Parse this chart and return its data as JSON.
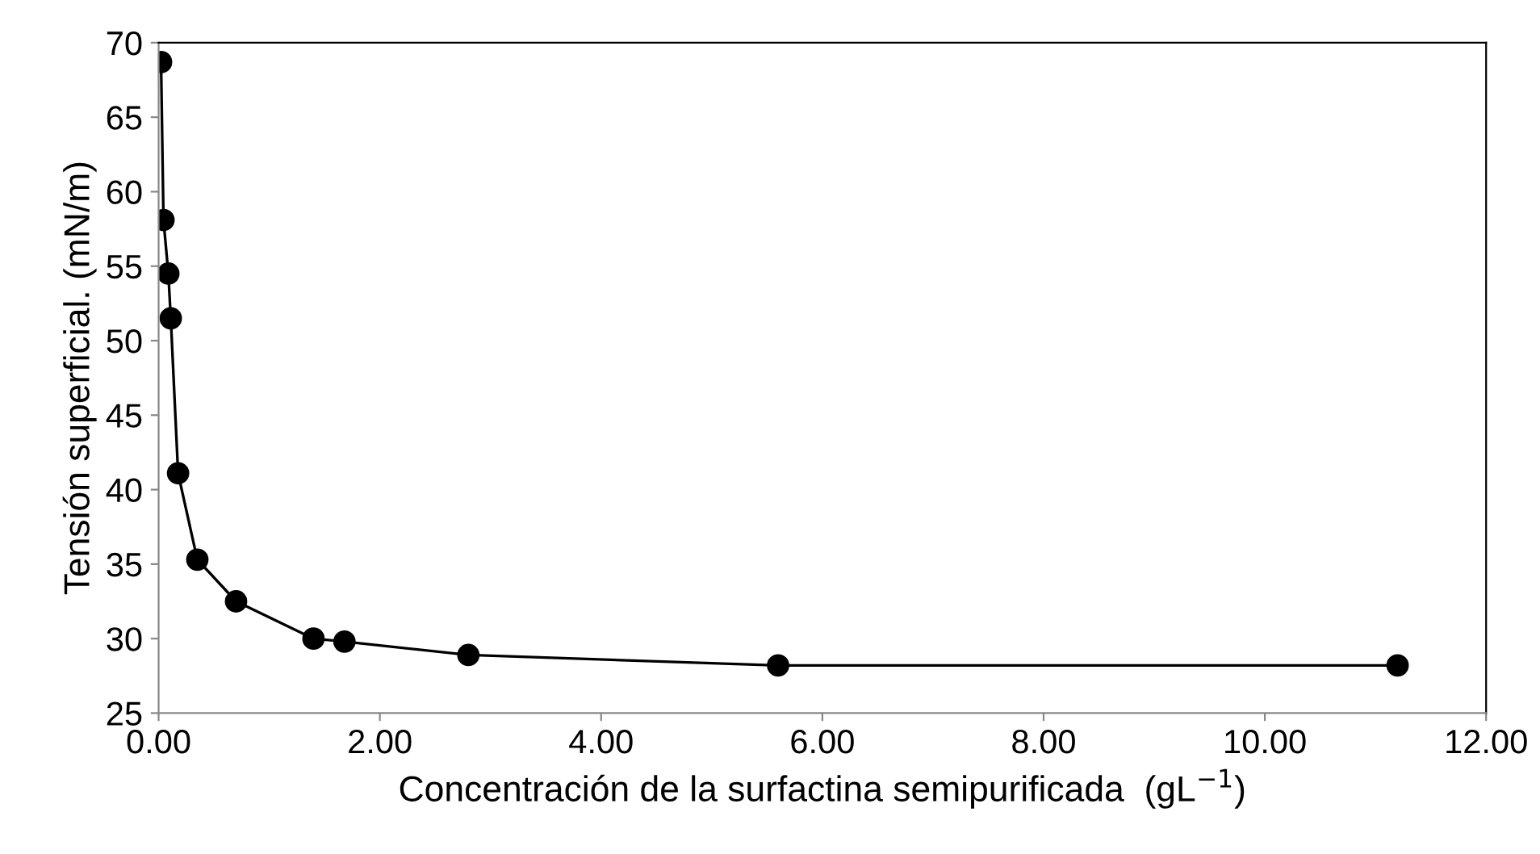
{
  "chart_data": {
    "type": "line",
    "xlabel": "Concentración de la surfactina semipurificada  (gL$^{−1}$)",
    "ylabel": "Tensión superficial. (mN/m)",
    "x": [
      0.022,
      0.044,
      0.088,
      0.11,
      0.176,
      0.35,
      0.7,
      1.4,
      1.68,
      2.8,
      5.6,
      11.2
    ],
    "series": [
      {
        "color": "#000000",
        "values": [
          68.7,
          58.1,
          54.5,
          51.5,
          41.1,
          35.3,
          32.5,
          30.0,
          29.8,
          28.9,
          28.2,
          28.2
        ]
      }
    ],
    "xlim": [
      0,
      12
    ],
    "ylim": [
      25,
      70
    ],
    "xticks": [
      {
        "value": 0,
        "label": "0.00"
      },
      {
        "value": 2,
        "label": "2.00"
      },
      {
        "value": 4,
        "label": "4.00"
      },
      {
        "value": 6,
        "label": "6.00"
      },
      {
        "value": 8,
        "label": "8.00"
      },
      {
        "value": 10,
        "label": "10.00"
      },
      {
        "value": 12,
        "label": "12.00"
      }
    ],
    "yticks": [
      25,
      30,
      35,
      40,
      45,
      50,
      55,
      60,
      65,
      70
    ],
    "marker": "circle",
    "line_style": "solid",
    "grid": false,
    "legend": false
  }
}
